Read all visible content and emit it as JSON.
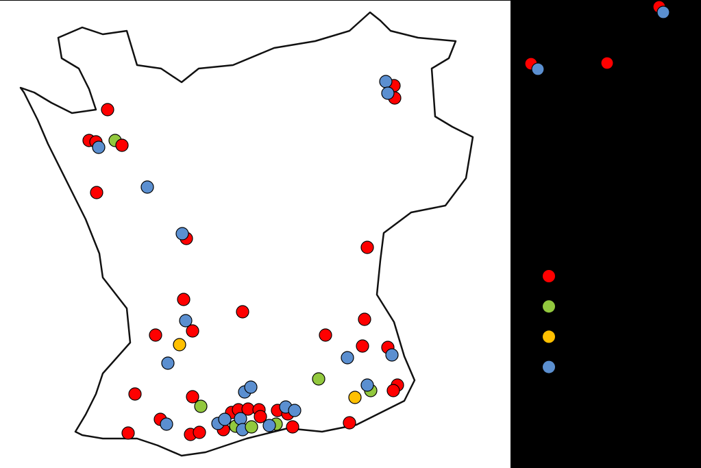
{
  "legend": [
    {
      "color": "#ff0000"
    },
    {
      "color": "#92c83e"
    },
    {
      "color": "#ffc000"
    },
    {
      "color": "#5b8fd0"
    }
  ]
}
